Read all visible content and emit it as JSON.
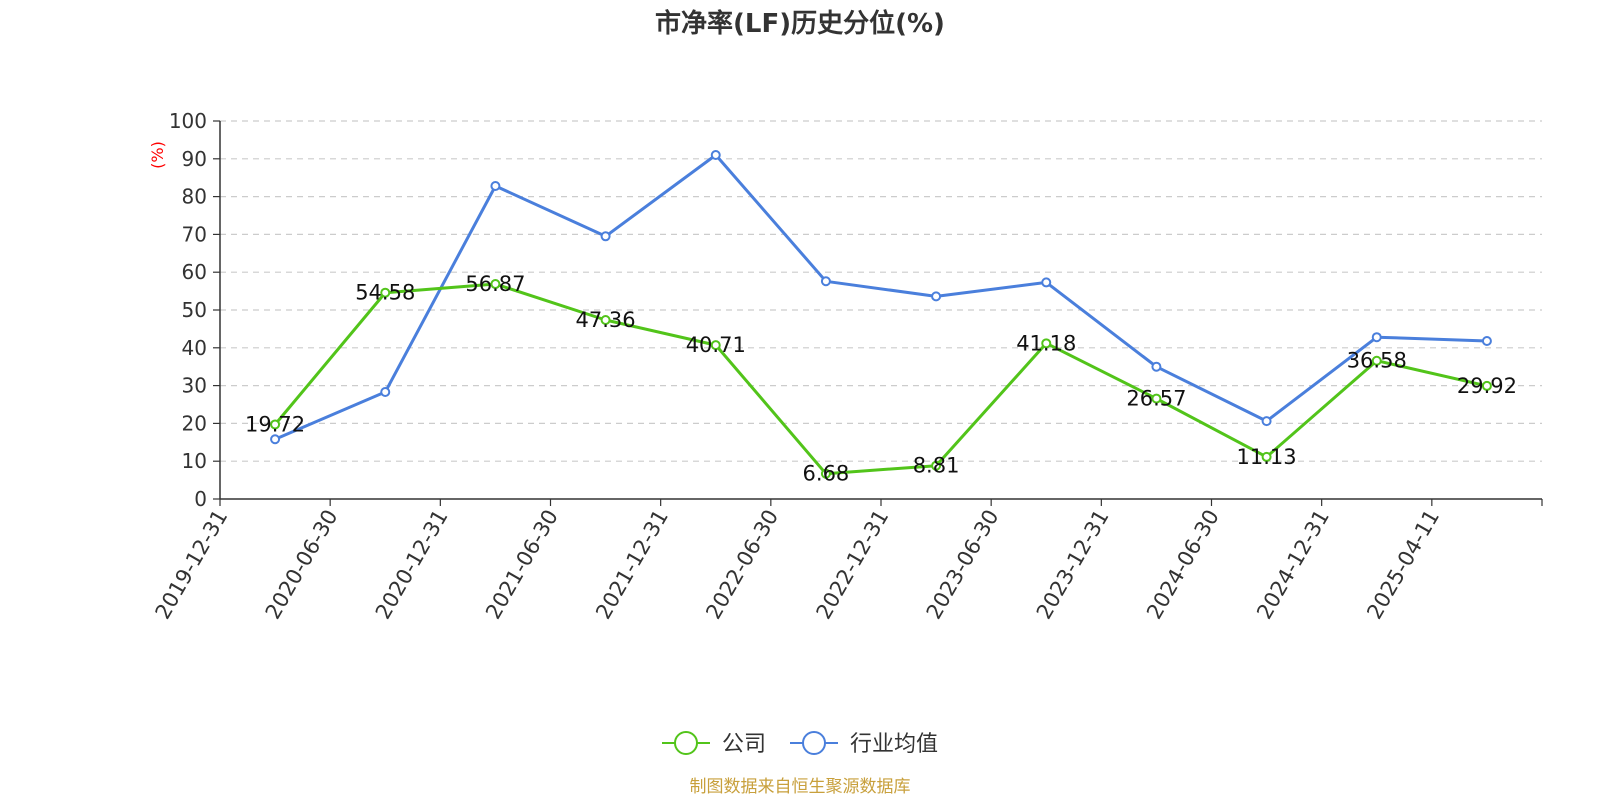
{
  "chart_data": {
    "type": "line",
    "title": "市净率(LF)历史分位(%)",
    "ylabel": "(%)",
    "ylim": [
      0,
      100
    ],
    "yticks": [
      0,
      10,
      20,
      30,
      40,
      50,
      60,
      70,
      80,
      90,
      100
    ],
    "grid": true,
    "legend_position": "bottom",
    "categories": [
      "2019-12-31",
      "2020-06-30",
      "2020-12-31",
      "2021-06-30",
      "2021-12-31",
      "2022-06-30",
      "2022-12-31",
      "2023-06-30",
      "2023-12-31",
      "2024-06-30",
      "2024-12-31",
      "2025-04-11"
    ],
    "series": [
      {
        "name": "公司",
        "color": "#52c41a",
        "show_labels": true,
        "values": [
          19.72,
          54.58,
          56.87,
          47.36,
          40.71,
          6.68,
          8.81,
          41.18,
          26.57,
          11.13,
          36.58,
          29.92
        ],
        "labels": [
          "19.72",
          "54.58",
          "56.87",
          "47.36",
          "40.71",
          "6.68",
          "8.81",
          "41.18",
          "26.57",
          "11.13",
          "36.58",
          "29.92"
        ]
      },
      {
        "name": "行业均值",
        "color": "#4a7fdc",
        "show_labels": false,
        "values": [
          15.8,
          28.3,
          82.8,
          69.5,
          91.0,
          57.6,
          53.6,
          57.3,
          35.0,
          20.6,
          42.8,
          41.8
        ]
      }
    ],
    "source": "制图数据来自恒生聚源数据库"
  }
}
